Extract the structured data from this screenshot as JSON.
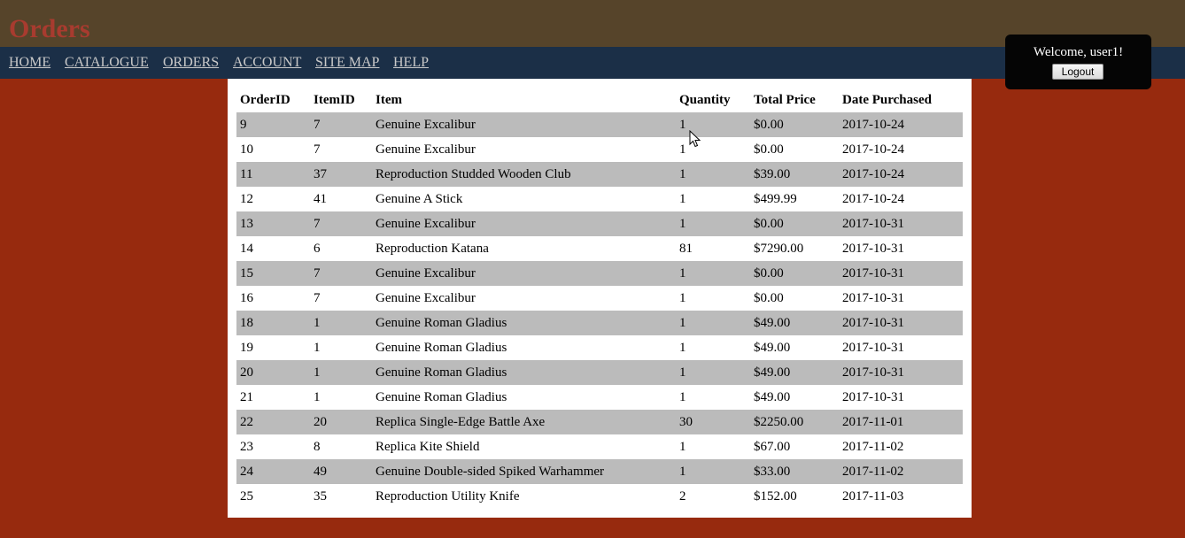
{
  "header": {
    "title": "Orders"
  },
  "nav": {
    "items": [
      {
        "label": "HOME"
      },
      {
        "label": "CATALOGUE"
      },
      {
        "label": "ORDERS"
      },
      {
        "label": "ACCOUNT"
      },
      {
        "label": "SITE MAP"
      },
      {
        "label": "HELP"
      }
    ]
  },
  "user": {
    "welcome": "Welcome, user1!",
    "logout_label": "Logout"
  },
  "table": {
    "columns": [
      "OrderID",
      "ItemID",
      "Item",
      "Quantity",
      "Total Price",
      "Date Purchased"
    ],
    "rows": [
      [
        "9",
        "7",
        "Genuine Excalibur",
        "1",
        "$0.00",
        "2017-10-24"
      ],
      [
        "10",
        "7",
        "Genuine Excalibur",
        "1",
        "$0.00",
        "2017-10-24"
      ],
      [
        "11",
        "37",
        "Reproduction Studded Wooden Club",
        "1",
        "$39.00",
        "2017-10-24"
      ],
      [
        "12",
        "41",
        "Genuine A Stick",
        "1",
        "$499.99",
        "2017-10-24"
      ],
      [
        "13",
        "7",
        "Genuine Excalibur",
        "1",
        "$0.00",
        "2017-10-31"
      ],
      [
        "14",
        "6",
        "Reproduction Katana",
        "81",
        "$7290.00",
        "2017-10-31"
      ],
      [
        "15",
        "7",
        "Genuine Excalibur",
        "1",
        "$0.00",
        "2017-10-31"
      ],
      [
        "16",
        "7",
        "Genuine Excalibur",
        "1",
        "$0.00",
        "2017-10-31"
      ],
      [
        "18",
        "1",
        "Genuine Roman Gladius",
        "1",
        "$49.00",
        "2017-10-31"
      ],
      [
        "19",
        "1",
        "Genuine Roman Gladius",
        "1",
        "$49.00",
        "2017-10-31"
      ],
      [
        "20",
        "1",
        "Genuine Roman Gladius",
        "1",
        "$49.00",
        "2017-10-31"
      ],
      [
        "21",
        "1",
        "Genuine Roman Gladius",
        "1",
        "$49.00",
        "2017-10-31"
      ],
      [
        "22",
        "20",
        "Replica Single-Edge Battle Axe",
        "30",
        "$2250.00",
        "2017-11-01"
      ],
      [
        "23",
        "8",
        "Replica Kite Shield",
        "1",
        "$67.00",
        "2017-11-02"
      ],
      [
        "24",
        "49",
        "Genuine Double-sided Spiked Warhammer",
        "1",
        "$33.00",
        "2017-11-02"
      ],
      [
        "25",
        "35",
        "Reproduction Utility Knife",
        "2",
        "$152.00",
        "2017-11-03"
      ]
    ]
  },
  "colors": {
    "background": "#972a0e",
    "header": "#56442a",
    "title": "#a83b2f",
    "navbar": "#1b2f47",
    "nav_link": "#c9c9c9",
    "row_stripe": "#bbbbbb"
  },
  "icons": {
    "cursor": "mouse-pointer-icon"
  }
}
